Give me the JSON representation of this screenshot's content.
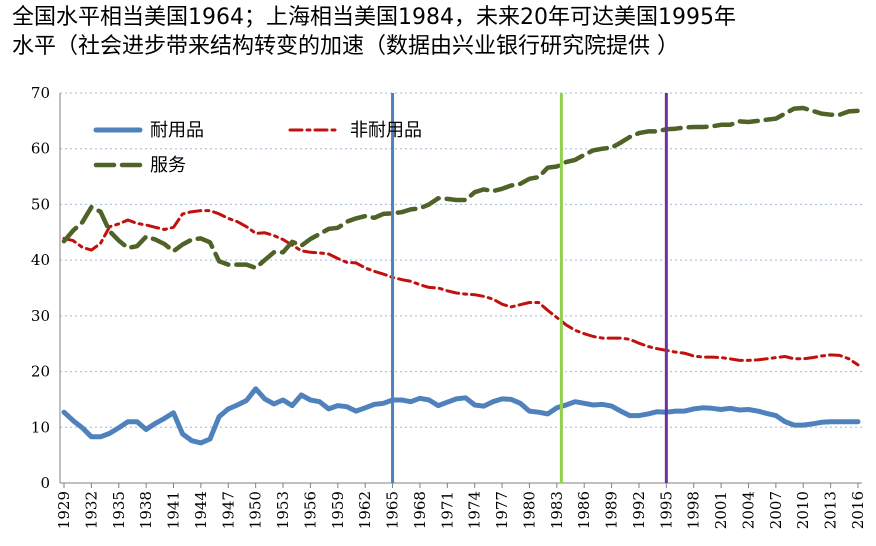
{
  "title": {
    "line1": "全国水平相当美国1964；上海相当美国1984，未来20年可达美国1995年",
    "line2": "水平（社会进步带来结构转变的加速（数据由兴业银行研究院提供 ）"
  },
  "chart_data": {
    "type": "line",
    "ylim": [
      0,
      70
    ],
    "yticks": [
      0,
      10,
      20,
      30,
      40,
      50,
      60,
      70
    ],
    "xlim": [
      1929,
      2016
    ],
    "xticks": [
      1929,
      1932,
      1935,
      1938,
      1941,
      1944,
      1947,
      1950,
      1953,
      1956,
      1959,
      1962,
      1965,
      1968,
      1971,
      1974,
      1977,
      1980,
      1983,
      1986,
      1989,
      1992,
      1995,
      1998,
      2001,
      2004,
      2007,
      2010,
      2013,
      2016
    ],
    "series": [
      {
        "name": "耐用品",
        "color": "#4f81bd",
        "style": "solid",
        "points": [
          [
            1929,
            12.7
          ],
          [
            1930,
            11.2
          ],
          [
            1931,
            9.9
          ],
          [
            1932,
            8.3
          ],
          [
            1933,
            8.3
          ],
          [
            1934,
            8.9
          ],
          [
            1935,
            9.9
          ],
          [
            1936,
            11.0
          ],
          [
            1937,
            11.0
          ],
          [
            1938,
            9.6
          ],
          [
            1939,
            10.7
          ],
          [
            1940,
            11.6
          ],
          [
            1941,
            12.6
          ],
          [
            1942,
            8.8
          ],
          [
            1943,
            7.6
          ],
          [
            1944,
            7.2
          ],
          [
            1945,
            7.9
          ],
          [
            1946,
            11.9
          ],
          [
            1947,
            13.3
          ],
          [
            1948,
            14.0
          ],
          [
            1949,
            14.8
          ],
          [
            1950,
            16.9
          ],
          [
            1951,
            15.1
          ],
          [
            1952,
            14.2
          ],
          [
            1953,
            14.9
          ],
          [
            1954,
            13.9
          ],
          [
            1955,
            15.8
          ],
          [
            1956,
            14.9
          ],
          [
            1957,
            14.6
          ],
          [
            1958,
            13.3
          ],
          [
            1959,
            13.9
          ],
          [
            1960,
            13.7
          ],
          [
            1961,
            12.9
          ],
          [
            1962,
            13.5
          ],
          [
            1963,
            14.1
          ],
          [
            1964,
            14.3
          ],
          [
            1965,
            14.9
          ],
          [
            1966,
            14.9
          ],
          [
            1967,
            14.6
          ],
          [
            1968,
            15.2
          ],
          [
            1969,
            14.9
          ],
          [
            1970,
            13.9
          ],
          [
            1971,
            14.5
          ],
          [
            1972,
            15.1
          ],
          [
            1973,
            15.3
          ],
          [
            1974,
            14.0
          ],
          [
            1975,
            13.8
          ],
          [
            1976,
            14.6
          ],
          [
            1977,
            15.1
          ],
          [
            1978,
            15.0
          ],
          [
            1979,
            14.3
          ],
          [
            1980,
            12.9
          ],
          [
            1981,
            12.7
          ],
          [
            1982,
            12.4
          ],
          [
            1983,
            13.5
          ],
          [
            1984,
            14.0
          ],
          [
            1985,
            14.6
          ],
          [
            1986,
            14.3
          ],
          [
            1987,
            14.0
          ],
          [
            1988,
            14.1
          ],
          [
            1989,
            13.8
          ],
          [
            1990,
            12.9
          ],
          [
            1991,
            12.1
          ],
          [
            1992,
            12.1
          ],
          [
            1993,
            12.4
          ],
          [
            1994,
            12.8
          ],
          [
            1995,
            12.7
          ],
          [
            1996,
            12.9
          ],
          [
            1997,
            12.9
          ],
          [
            1998,
            13.3
          ],
          [
            1999,
            13.5
          ],
          [
            2000,
            13.4
          ],
          [
            2001,
            13.2
          ],
          [
            2002,
            13.4
          ],
          [
            2003,
            13.1
          ],
          [
            2004,
            13.2
          ],
          [
            2005,
            12.9
          ],
          [
            2006,
            12.5
          ],
          [
            2007,
            12.1
          ],
          [
            2008,
            11.0
          ],
          [
            2009,
            10.4
          ],
          [
            2010,
            10.4
          ],
          [
            2011,
            10.6
          ],
          [
            2012,
            10.9
          ],
          [
            2013,
            11.0
          ],
          [
            2014,
            11.0
          ],
          [
            2015,
            11.0
          ],
          [
            2016,
            11.0
          ]
        ]
      },
      {
        "name": "非耐用品",
        "color": "#c0110e",
        "style": "dashdot",
        "points": [
          [
            1929,
            43.9
          ],
          [
            1930,
            43.5
          ],
          [
            1931,
            42.3
          ],
          [
            1932,
            41.8
          ],
          [
            1933,
            43.0
          ],
          [
            1934,
            46.0
          ],
          [
            1935,
            46.5
          ],
          [
            1936,
            47.2
          ],
          [
            1937,
            46.6
          ],
          [
            1938,
            46.3
          ],
          [
            1939,
            45.9
          ],
          [
            1940,
            45.5
          ],
          [
            1941,
            45.9
          ],
          [
            1942,
            48.3
          ],
          [
            1943,
            48.7
          ],
          [
            1944,
            48.9
          ],
          [
            1945,
            48.9
          ],
          [
            1946,
            48.3
          ],
          [
            1947,
            47.5
          ],
          [
            1948,
            46.9
          ],
          [
            1949,
            46.0
          ],
          [
            1950,
            44.8
          ],
          [
            1951,
            44.9
          ],
          [
            1952,
            44.4
          ],
          [
            1953,
            43.7
          ],
          [
            1954,
            42.7
          ],
          [
            1955,
            41.7
          ],
          [
            1956,
            41.4
          ],
          [
            1957,
            41.3
          ],
          [
            1958,
            41.1
          ],
          [
            1959,
            40.3
          ],
          [
            1960,
            39.6
          ],
          [
            1961,
            39.5
          ],
          [
            1962,
            38.6
          ],
          [
            1963,
            38.0
          ],
          [
            1964,
            37.5
          ],
          [
            1965,
            36.9
          ],
          [
            1966,
            36.5
          ],
          [
            1967,
            36.2
          ],
          [
            1968,
            35.6
          ],
          [
            1969,
            35.1
          ],
          [
            1970,
            35.0
          ],
          [
            1971,
            34.5
          ],
          [
            1972,
            34.1
          ],
          [
            1973,
            33.9
          ],
          [
            1974,
            33.8
          ],
          [
            1975,
            33.5
          ],
          [
            1976,
            33.0
          ],
          [
            1977,
            32.1
          ],
          [
            1978,
            31.6
          ],
          [
            1979,
            32.0
          ],
          [
            1980,
            32.4
          ],
          [
            1981,
            32.4
          ],
          [
            1982,
            31.0
          ],
          [
            1983,
            29.7
          ],
          [
            1984,
            28.4
          ],
          [
            1985,
            27.4
          ],
          [
            1986,
            26.8
          ],
          [
            1987,
            26.3
          ],
          [
            1988,
            26.0
          ],
          [
            1989,
            26.0
          ],
          [
            1990,
            26.0
          ],
          [
            1991,
            25.8
          ],
          [
            1992,
            25.1
          ],
          [
            1993,
            24.5
          ],
          [
            1994,
            24.1
          ],
          [
            1995,
            23.8
          ],
          [
            1996,
            23.5
          ],
          [
            1997,
            23.3
          ],
          [
            1998,
            22.8
          ],
          [
            1999,
            22.6
          ],
          [
            2000,
            22.6
          ],
          [
            2001,
            22.5
          ],
          [
            2002,
            22.3
          ],
          [
            2003,
            22.0
          ],
          [
            2004,
            22.0
          ],
          [
            2005,
            22.1
          ],
          [
            2006,
            22.3
          ],
          [
            2007,
            22.5
          ],
          [
            2008,
            22.7
          ],
          [
            2009,
            22.3
          ],
          [
            2010,
            22.3
          ],
          [
            2011,
            22.5
          ],
          [
            2012,
            22.8
          ],
          [
            2013,
            23.0
          ],
          [
            2014,
            22.9
          ],
          [
            2015,
            22.3
          ],
          [
            2016,
            21.2
          ]
        ]
      },
      {
        "name": "服务",
        "color": "#4f6228",
        "style": "longdash",
        "points": [
          [
            1929,
            43.4
          ],
          [
            1930,
            45.3
          ],
          [
            1931,
            46.8
          ],
          [
            1932,
            49.5
          ],
          [
            1933,
            48.7
          ],
          [
            1934,
            45.2
          ],
          [
            1935,
            43.5
          ],
          [
            1936,
            42.2
          ],
          [
            1937,
            42.5
          ],
          [
            1938,
            44.2
          ],
          [
            1939,
            43.7
          ],
          [
            1940,
            42.9
          ],
          [
            1941,
            41.6
          ],
          [
            1942,
            42.8
          ],
          [
            1943,
            43.7
          ],
          [
            1944,
            43.9
          ],
          [
            1945,
            43.2
          ],
          [
            1946,
            39.8
          ],
          [
            1947,
            39.2
          ],
          [
            1948,
            39.2
          ],
          [
            1949,
            39.2
          ],
          [
            1950,
            38.6
          ],
          [
            1951,
            40.0
          ],
          [
            1952,
            41.4
          ],
          [
            1953,
            41.4
          ],
          [
            1954,
            43.3
          ],
          [
            1955,
            42.6
          ],
          [
            1956,
            43.8
          ],
          [
            1957,
            44.7
          ],
          [
            1958,
            45.6
          ],
          [
            1959,
            45.8
          ],
          [
            1960,
            46.9
          ],
          [
            1961,
            47.5
          ],
          [
            1962,
            47.9
          ],
          [
            1963,
            47.6
          ],
          [
            1964,
            48.3
          ],
          [
            1965,
            48.4
          ],
          [
            1966,
            48.6
          ],
          [
            1967,
            49.1
          ],
          [
            1968,
            49.3
          ],
          [
            1969,
            50.0
          ],
          [
            1970,
            51.1
          ],
          [
            1971,
            51.0
          ],
          [
            1972,
            50.8
          ],
          [
            1973,
            50.8
          ],
          [
            1974,
            52.2
          ],
          [
            1975,
            52.7
          ],
          [
            1976,
            52.4
          ],
          [
            1977,
            52.8
          ],
          [
            1978,
            53.4
          ],
          [
            1979,
            53.7
          ],
          [
            1980,
            54.6
          ],
          [
            1981,
            54.9
          ],
          [
            1982,
            56.6
          ],
          [
            1983,
            56.8
          ],
          [
            1984,
            57.6
          ],
          [
            1985,
            58.0
          ],
          [
            1986,
            58.9
          ],
          [
            1987,
            59.7
          ],
          [
            1988,
            60.0
          ],
          [
            1989,
            60.2
          ],
          [
            1990,
            61.1
          ],
          [
            1991,
            62.1
          ],
          [
            1992,
            62.8
          ],
          [
            1993,
            63.1
          ],
          [
            1994,
            63.1
          ],
          [
            1995,
            63.5
          ],
          [
            1996,
            63.6
          ],
          [
            1997,
            63.8
          ],
          [
            1998,
            63.9
          ],
          [
            1999,
            63.9
          ],
          [
            2000,
            64.0
          ],
          [
            2001,
            64.3
          ],
          [
            2002,
            64.3
          ],
          [
            2003,
            64.9
          ],
          [
            2004,
            64.8
          ],
          [
            2005,
            65.0
          ],
          [
            2006,
            65.2
          ],
          [
            2007,
            65.4
          ],
          [
            2008,
            66.3
          ],
          [
            2009,
            67.2
          ],
          [
            2010,
            67.3
          ],
          [
            2011,
            66.8
          ],
          [
            2012,
            66.3
          ],
          [
            2013,
            66.1
          ],
          [
            2014,
            66.1
          ],
          [
            2015,
            66.7
          ],
          [
            2016,
            66.8
          ]
        ]
      }
    ],
    "annotations": [
      {
        "type": "vline",
        "x": 1965,
        "color": "#4f81bd"
      },
      {
        "type": "vline",
        "x": 1983.5,
        "color": "#92d050"
      },
      {
        "type": "vline",
        "x": 1995,
        "color": "#7030a0"
      }
    ],
    "legend": {
      "placement": "top-left"
    }
  }
}
